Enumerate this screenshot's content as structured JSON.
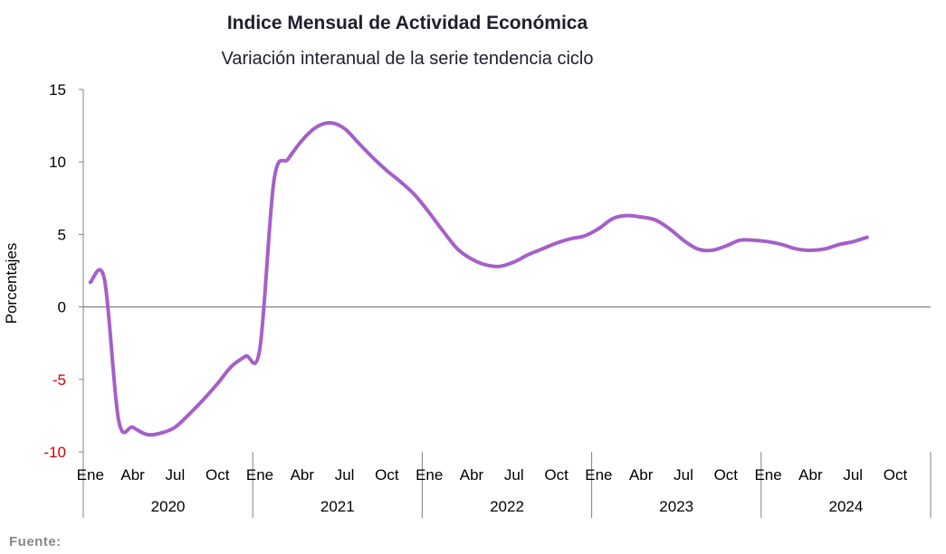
{
  "title": "Indice Mensual de  Actividad Económica",
  "subtitle": "Variación interanual de la serie tendencia ciclo",
  "source": "Fuente:",
  "colors": {
    "line": "#a65fc9",
    "axis": "#808080",
    "negative_tick": "#cc0000"
  },
  "chart_data": {
    "type": "line",
    "title": "Indice Mensual de  Actividad Económica",
    "subtitle": "Variación interanual de la serie tendencia ciclo",
    "xlabel": "",
    "ylabel": "Porcentajes",
    "ylim": [
      -10,
      15
    ],
    "yticks": [
      "15",
      "10",
      "5",
      "0",
      "-5",
      "-10"
    ],
    "month_labels": [
      "Ene",
      "Abr",
      "Jul",
      "Oct"
    ],
    "years": [
      "2020",
      "2021",
      "2022",
      "2023",
      "2024"
    ],
    "grid": false,
    "legend": "none",
    "series": [
      {
        "values": [
          1.7,
          1.9,
          -7.8,
          -8.3,
          -8.8,
          -8.7,
          -8.3,
          -7.4,
          -6.4,
          -5.3,
          -4.1,
          -3.4,
          -2.9,
          8.7,
          10.2,
          11.5,
          12.4,
          12.7,
          12.3,
          11.3,
          10.3,
          9.4,
          8.6,
          7.7,
          6.5,
          5.2,
          4.0,
          3.3,
          2.9,
          2.8,
          3.1,
          3.6,
          4.0,
          4.4,
          4.7,
          4.9,
          5.4,
          6.1,
          6.3,
          6.2,
          6.0,
          5.4,
          4.6,
          4.0,
          3.9,
          4.2,
          4.6,
          4.6,
          4.5,
          4.3,
          4.0,
          3.9,
          4.0,
          4.3,
          4.5,
          4.8
        ]
      }
    ]
  }
}
